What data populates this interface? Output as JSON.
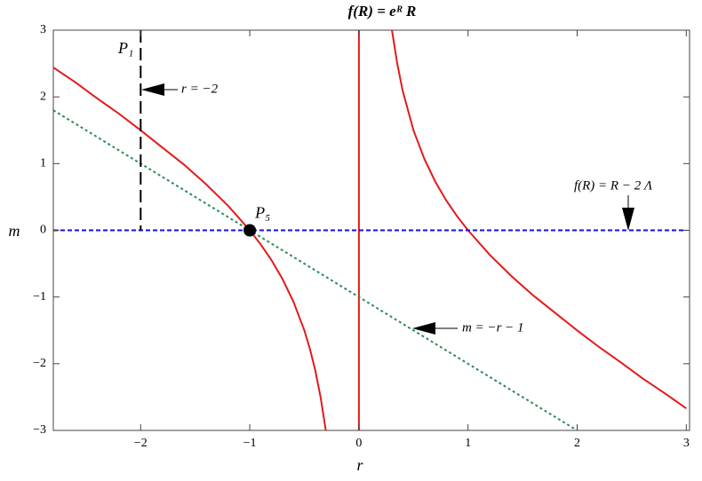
{
  "chart_data": {
    "type": "line",
    "title": "f(R) = eᴿ R",
    "x_label": "r",
    "y_label": "m",
    "xlim": [
      -2.8,
      3.03
    ],
    "ylim": [
      -3,
      3
    ],
    "xticks": [
      {
        "value": -2,
        "label": "−2"
      },
      {
        "value": -1,
        "label": "−1"
      },
      0,
      1,
      2,
      3
    ],
    "yticks": [
      {
        "value": -3,
        "label": "−3"
      },
      {
        "value": -2,
        "label": "−2"
      },
      {
        "value": -1,
        "label": "−1"
      },
      0,
      1,
      2,
      3
    ],
    "series": [
      {
        "color": "#e41a1a",
        "style": "solid",
        "x": [
          -2.8,
          -2.6,
          -2.4,
          -2.2,
          -2.0,
          -1.8,
          -1.6,
          -1.4,
          -1.2,
          -1.0,
          -0.9,
          -0.8,
          -0.7,
          -0.6,
          -0.5,
          -0.45,
          -0.4,
          -0.35,
          -0.3
        ],
        "values": [
          2.44,
          2.22,
          1.98,
          1.75,
          1.5,
          1.24,
          0.98,
          0.69,
          0.37,
          0,
          -0.21,
          -0.45,
          -0.73,
          -1.07,
          -1.5,
          -1.77,
          -2.1,
          -2.51,
          -3.03
        ]
      },
      {
        "color": "#e41a1a",
        "style": "solid",
        "x": [
          0.3,
          0.35,
          0.4,
          0.5,
          0.6,
          0.7,
          0.8,
          0.9,
          1.0,
          1.2,
          1.4,
          1.6,
          1.8,
          2.0,
          2.2,
          2.4,
          2.6,
          2.8,
          3.0
        ],
        "values": [
          3.03,
          2.51,
          2.1,
          1.5,
          1.07,
          0.73,
          0.45,
          0.21,
          0,
          -0.37,
          -0.69,
          -0.98,
          -1.24,
          -1.5,
          -1.75,
          -1.98,
          -2.22,
          -2.44,
          -2.67
        ]
      },
      {
        "color": "#e41a1a",
        "style": "solid",
        "x": [
          0,
          0
        ],
        "values": [
          -3,
          3
        ]
      },
      {
        "color": "#1010e0",
        "style": "dashed",
        "x": [
          -2.8,
          3.0
        ],
        "values": [
          0,
          0
        ]
      },
      {
        "color": "#2e8b57",
        "style": "dotted",
        "x": [
          -2.8,
          2.0
        ],
        "values": [
          1.8,
          -3
        ]
      },
      {
        "color": "#000000",
        "style": "longdash",
        "x": [
          -2,
          -2
        ],
        "values": [
          3,
          0
        ]
      }
    ],
    "marker": {
      "x": -1,
      "y": 0,
      "label": "P₅"
    },
    "annotations": [
      "P₁",
      "r = −2",
      "f(R) = R − 2 Λ",
      "m = −r − 1"
    ]
  }
}
